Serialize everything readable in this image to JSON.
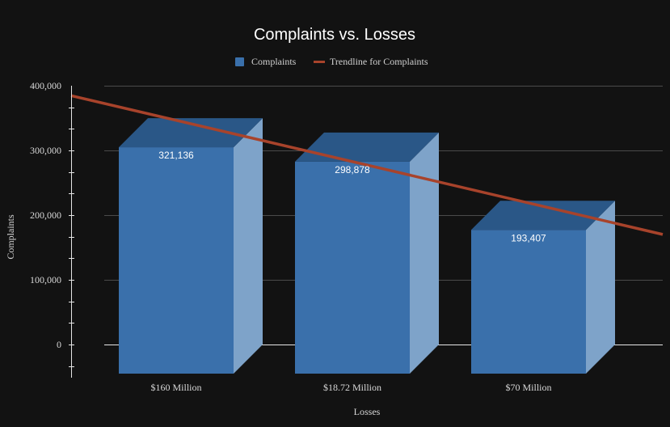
{
  "chart_data": {
    "type": "bar",
    "title": "Complaints vs. Losses",
    "xlabel": "Losses",
    "ylabel": "Complaints",
    "categories": [
      "$160 Million",
      "$18.72 Million",
      "$70 Million"
    ],
    "series": [
      {
        "name": "Complaints",
        "values": [
          321136,
          298878,
          193407
        ],
        "data_labels": [
          "321,136",
          "298,878",
          "193,407"
        ],
        "color": "#3a70ab"
      }
    ],
    "trendline": {
      "name": "Trendline for Complaints",
      "type": "linear",
      "color": "#a8432b"
    },
    "ylim": [
      0,
      400000
    ],
    "yticks": [
      0,
      100000,
      200000,
      300000,
      400000
    ],
    "ytick_labels": [
      "0",
      "100,000",
      "200,000",
      "300,000",
      "400,000"
    ],
    "grid": true,
    "legend_position": "top",
    "style_3d": true,
    "background": "#121212"
  }
}
